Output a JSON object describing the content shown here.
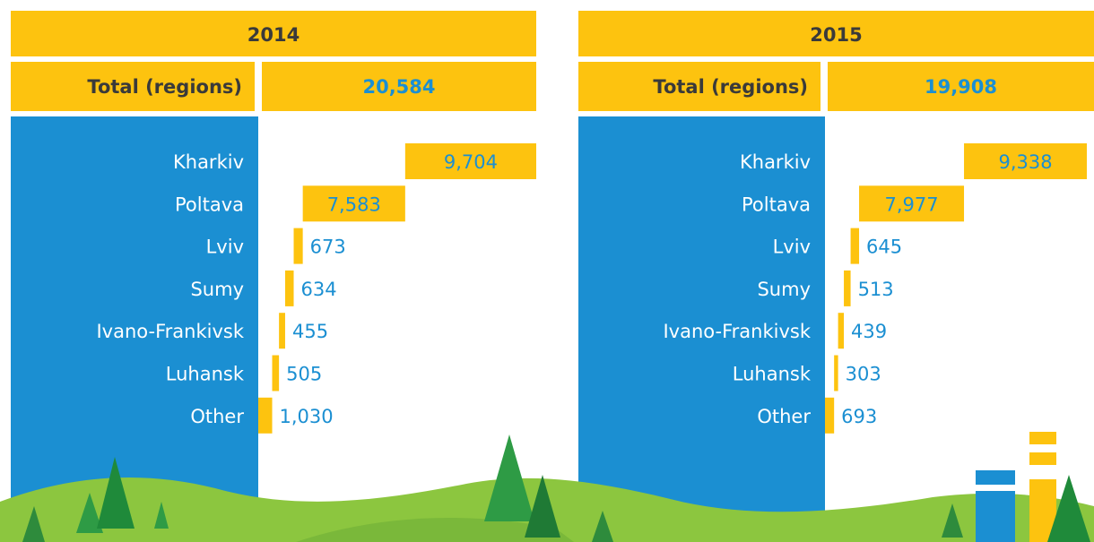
{
  "chart_data": [
    {
      "type": "waterfall",
      "title": "2014",
      "total_name": "Total (regions)",
      "total": 20584,
      "total_label": "20,584",
      "categories": [
        "Kharkiv",
        "Poltava",
        "Lviv",
        "Sumy",
        "Ivano-Frankivsk",
        "Luhansk",
        "Other"
      ],
      "values": [
        9704,
        7583,
        673,
        634,
        455,
        505,
        1030
      ],
      "value_labels": [
        "9,704",
        "7,583",
        "673",
        "634",
        "455",
        "505",
        "1,030"
      ],
      "color": "#fdc30f"
    },
    {
      "type": "waterfall",
      "title": "2015",
      "total_name": "Total (regions)",
      "total": 19908,
      "total_label": "19,908",
      "categories": [
        "Kharkiv",
        "Poltava",
        "Lviv",
        "Sumy",
        "Ivano-Frankivsk",
        "Luhansk",
        "Other"
      ],
      "values": [
        9338,
        7977,
        645,
        513,
        439,
        303,
        693
      ],
      "value_labels": [
        "9,338",
        "7,977",
        "645",
        "513",
        "439",
        "303",
        "693"
      ],
      "color": "#fdc30f"
    }
  ]
}
